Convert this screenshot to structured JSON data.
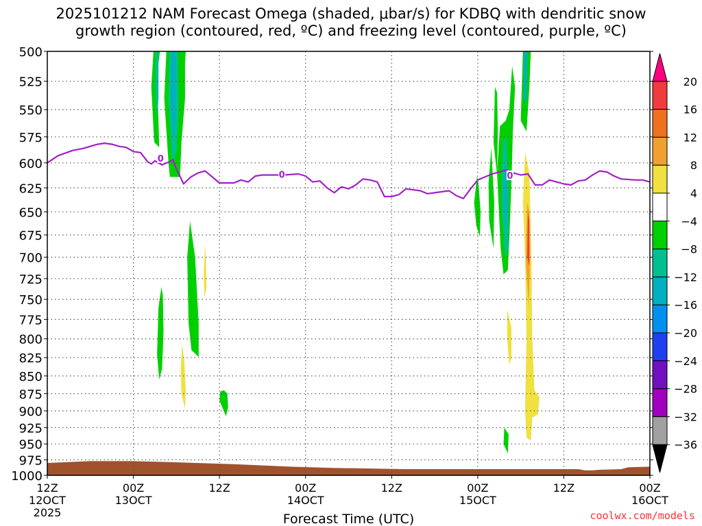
{
  "title_line_1": "2025101212 NAM Forecast Omega (shaded, μbar/s) for KDBQ with dendritic snow",
  "title_line_2": "growth region (contoured, red, ºC) and freezing level (contoured, purple, ºC)",
  "credit": "coolwx.com/models",
  "colors": {
    "freezing_level": "#a020c8",
    "terrain": "#a0522d",
    "grid": "#555555",
    "credit": "#ff3030"
  },
  "chart_data": {
    "type": "time-height cross section",
    "title": "2025101212 NAM Forecast Omega (shaded, μbar/s) for KDBQ with dendritic snow growth region (contoured, red, ºC) and freezing level (contoured, purple, ºC)",
    "xlabel": "Forecast Time (UTC)",
    "ylabel": "",
    "x_unit": "hours since 12Z 12OCT 2025",
    "xlim": [
      0,
      84
    ],
    "ylim": [
      1000,
      500
    ],
    "grid": true,
    "x_ticks": [
      {
        "hour": 0,
        "line1": "12Z",
        "line2": "12OCT",
        "line3": "2025"
      },
      {
        "hour": 12,
        "line1": "00Z",
        "line2": "13OCT",
        "line3": ""
      },
      {
        "hour": 24,
        "line1": "12Z",
        "line2": "",
        "line3": ""
      },
      {
        "hour": 36,
        "line1": "00Z",
        "line2": "14OCT",
        "line3": ""
      },
      {
        "hour": 48,
        "line1": "12Z",
        "line2": "",
        "line3": ""
      },
      {
        "hour": 60,
        "line1": "00Z",
        "line2": "15OCT",
        "line3": ""
      },
      {
        "hour": 72,
        "line1": "12Z",
        "line2": "",
        "line3": ""
      },
      {
        "hour": 84,
        "line1": "00Z",
        "line2": "16OCT",
        "line3": ""
      }
    ],
    "y_ticks": [
      500,
      525,
      550,
      575,
      600,
      625,
      650,
      675,
      700,
      725,
      750,
      775,
      800,
      825,
      850,
      875,
      900,
      925,
      950,
      975,
      1000
    ],
    "colorbar": {
      "labels": [
        "20",
        "16",
        "12",
        "8",
        "4",
        "−4",
        "−8",
        "−12",
        "−16",
        "−20",
        "−24",
        "−28",
        "−32",
        "−36"
      ],
      "colors": [
        "#ff0080",
        "#f03c3c",
        "#f07020",
        "#f0a030",
        "#f0e040",
        "#ffffff",
        "#00d000",
        "#00c090",
        "#00b0c0",
        "#0090f0",
        "#2040f0",
        "#7010c0",
        "#a000c0",
        "#a0a0a0",
        "#000000"
      ]
    },
    "freezing_level": {
      "contour_label": "0",
      "points": [
        [
          0,
          600
        ],
        [
          1.5,
          593
        ],
        [
          3.5,
          588
        ],
        [
          5,
          586
        ],
        [
          7,
          582
        ],
        [
          8,
          581
        ],
        [
          9,
          582
        ],
        [
          10,
          584
        ],
        [
          11,
          585
        ],
        [
          12,
          589
        ],
        [
          13,
          590
        ],
        [
          14,
          599
        ],
        [
          14.5,
          601
        ],
        [
          15,
          598
        ],
        [
          16,
          602
        ],
        [
          17,
          599
        ],
        [
          17.5,
          597
        ],
        [
          18,
          606
        ],
        [
          19,
          621
        ],
        [
          20,
          614
        ],
        [
          21,
          610
        ],
        [
          22,
          608
        ],
        [
          23,
          614
        ],
        [
          24,
          620
        ],
        [
          26,
          620
        ],
        [
          27,
          617
        ],
        [
          28,
          619
        ],
        [
          29,
          613
        ],
        [
          30,
          612
        ],
        [
          33,
          612
        ],
        [
          35,
          611
        ],
        [
          36,
          613
        ],
        [
          37,
          619
        ],
        [
          38,
          618
        ],
        [
          39,
          625
        ],
        [
          40,
          630
        ],
        [
          41,
          624
        ],
        [
          42,
          626
        ],
        [
          43,
          622
        ],
        [
          44,
          616
        ],
        [
          45,
          617
        ],
        [
          46,
          619
        ],
        [
          47,
          634
        ],
        [
          48,
          634
        ],
        [
          49,
          632
        ],
        [
          50,
          626
        ],
        [
          52,
          628
        ],
        [
          53,
          631
        ],
        [
          54,
          630
        ],
        [
          56,
          628
        ],
        [
          57,
          633
        ],
        [
          58,
          636
        ],
        [
          59,
          626
        ],
        [
          60,
          617
        ],
        [
          61,
          614
        ],
        [
          62,
          611
        ],
        [
          63,
          609
        ],
        [
          64,
          607
        ],
        [
          65,
          610
        ],
        [
          66,
          612
        ],
        [
          67,
          611
        ],
        [
          68,
          622
        ],
        [
          69,
          622
        ],
        [
          70,
          617
        ],
        [
          71,
          619
        ],
        [
          72,
          621
        ],
        [
          73,
          622
        ],
        [
          74,
          618
        ],
        [
          75,
          617
        ],
        [
          76,
          612
        ],
        [
          77,
          608
        ],
        [
          78,
          609
        ],
        [
          79,
          613
        ],
        [
          80,
          616
        ],
        [
          82,
          617
        ],
        [
          83,
          617
        ],
        [
          84,
          619
        ]
      ],
      "labels": [
        [
          15.8,
          596
        ],
        [
          32.7,
          612
        ],
        [
          64.5,
          613
        ]
      ]
    },
    "omega_shading": [
      {
        "level": "-4",
        "points": [
          [
            14.8,
            500
          ],
          [
            14.5,
            530
          ],
          [
            14.9,
            580
          ],
          [
            15.6,
            585
          ],
          [
            15.5,
            560
          ],
          [
            15.3,
            520
          ],
          [
            15.7,
            500
          ]
        ]
      },
      {
        "level": "-4",
        "points": [
          [
            16.6,
            500
          ],
          [
            16.3,
            540
          ],
          [
            16.9,
            600
          ],
          [
            17.1,
            614
          ],
          [
            18.5,
            614
          ],
          [
            18.7,
            580
          ],
          [
            19.2,
            540
          ],
          [
            19.2,
            510
          ],
          [
            19.3,
            500
          ]
        ]
      },
      {
        "level": "-8",
        "points": [
          [
            15.1,
            500
          ],
          [
            15.0,
            530
          ],
          [
            15.3,
            560
          ],
          [
            15.5,
            540
          ],
          [
            15.5,
            500
          ]
        ]
      },
      {
        "level": "-8",
        "points": [
          [
            17.0,
            500
          ],
          [
            16.9,
            540
          ],
          [
            17.4,
            600
          ],
          [
            18.0,
            590
          ],
          [
            18.3,
            550
          ],
          [
            18.2,
            500
          ]
        ]
      },
      {
        "level": "-12",
        "points": [
          [
            17.3,
            500
          ],
          [
            17.2,
            540
          ],
          [
            17.6,
            580
          ],
          [
            17.9,
            560
          ],
          [
            17.9,
            500
          ]
        ]
      },
      {
        "level": "-4",
        "points": [
          [
            15.9,
            735
          ],
          [
            15.5,
            760
          ],
          [
            15.3,
            820
          ],
          [
            15.6,
            855
          ],
          [
            16.0,
            840
          ],
          [
            16.2,
            790
          ],
          [
            16.1,
            745
          ]
        ]
      },
      {
        "level": "-4",
        "points": [
          [
            19.9,
            660
          ],
          [
            19.5,
            700
          ],
          [
            19.7,
            780
          ],
          [
            20.1,
            815
          ],
          [
            21.1,
            824
          ],
          [
            21.1,
            780
          ],
          [
            20.6,
            700
          ]
        ]
      },
      {
        "level": "-4",
        "points": [
          [
            24.1,
            872
          ],
          [
            24.0,
            885
          ],
          [
            24.6,
            900
          ],
          [
            24.9,
            908
          ],
          [
            25.2,
            895
          ],
          [
            25.1,
            875
          ],
          [
            24.6,
            870
          ]
        ]
      },
      {
        "level": "4",
        "points": [
          [
            18.8,
            807
          ],
          [
            18.6,
            840
          ],
          [
            18.7,
            875
          ],
          [
            19.2,
            897
          ],
          [
            19.3,
            870
          ],
          [
            19.1,
            830
          ]
        ]
      },
      {
        "level": "4",
        "points": [
          [
            22.0,
            685
          ],
          [
            21.8,
            720
          ],
          [
            21.9,
            748
          ],
          [
            22.2,
            735
          ],
          [
            22.1,
            700
          ]
        ]
      },
      {
        "level": "-4",
        "points": [
          [
            59.9,
            613
          ],
          [
            59.5,
            640
          ],
          [
            59.8,
            665
          ],
          [
            60.3,
            677
          ],
          [
            60.4,
            650
          ],
          [
            60.1,
            620
          ]
        ]
      },
      {
        "level": "-4",
        "points": [
          [
            61.9,
            585
          ],
          [
            61.5,
            620
          ],
          [
            61.6,
            660
          ],
          [
            62.2,
            690
          ],
          [
            62.3,
            640
          ],
          [
            62.0,
            600
          ]
        ]
      },
      {
        "level": "-4",
        "points": [
          [
            63.1,
            565
          ],
          [
            62.7,
            610
          ],
          [
            63.2,
            690
          ],
          [
            63.6,
            720
          ],
          [
            64.2,
            715
          ],
          [
            64.4,
            680
          ],
          [
            64.7,
            620
          ],
          [
            64.9,
            570
          ],
          [
            65.2,
            530
          ],
          [
            64.8,
            512
          ],
          [
            64.4,
            550
          ],
          [
            63.9,
            560
          ]
        ]
      },
      {
        "level": "-4",
        "points": [
          [
            62.4,
            530
          ],
          [
            62.2,
            580
          ],
          [
            62.7,
            612
          ],
          [
            62.8,
            570
          ],
          [
            62.7,
            535
          ]
        ]
      },
      {
        "level": "-4",
        "points": [
          [
            66.3,
            500
          ],
          [
            66.0,
            560
          ],
          [
            66.8,
            570
          ],
          [
            67.2,
            530
          ],
          [
            67.4,
            500
          ]
        ]
      },
      {
        "level": "-8",
        "points": [
          [
            63.5,
            580
          ],
          [
            63.3,
            640
          ],
          [
            63.8,
            700
          ],
          [
            64.3,
            690
          ],
          [
            64.3,
            620
          ],
          [
            64.0,
            575
          ]
        ]
      },
      {
        "level": "-12",
        "points": [
          [
            63.7,
            600
          ],
          [
            63.7,
            660
          ],
          [
            64.0,
            670
          ],
          [
            64.1,
            620
          ]
        ]
      },
      {
        "level": "-12",
        "points": [
          [
            66.4,
            500
          ],
          [
            66.4,
            540
          ],
          [
            66.8,
            545
          ],
          [
            66.9,
            500
          ]
        ]
      },
      {
        "level": "-4",
        "points": [
          [
            63.7,
            925
          ],
          [
            63.6,
            950
          ],
          [
            64.2,
            965
          ],
          [
            64.3,
            935
          ]
        ]
      },
      {
        "level": "4",
        "points": [
          [
            66.6,
            590
          ],
          [
            66.3,
            640
          ],
          [
            66.6,
            700
          ],
          [
            66.8,
            800
          ],
          [
            66.6,
            900
          ],
          [
            66.8,
            940
          ],
          [
            67.4,
            945
          ],
          [
            67.6,
            910
          ],
          [
            68.4,
            905
          ],
          [
            68.6,
            880
          ],
          [
            67.9,
            870
          ],
          [
            67.6,
            800
          ],
          [
            67.5,
            700
          ],
          [
            67.2,
            610
          ]
        ]
      },
      {
        "level": "4",
        "points": [
          [
            64.1,
            763
          ],
          [
            64.1,
            800
          ],
          [
            64.4,
            835
          ],
          [
            64.7,
            825
          ],
          [
            64.7,
            785
          ]
        ]
      },
      {
        "level": "8",
        "points": [
          [
            66.9,
            640
          ],
          [
            66.7,
            700
          ],
          [
            67.1,
            760
          ],
          [
            67.3,
            700
          ],
          [
            67.2,
            650
          ]
        ]
      },
      {
        "level": "16",
        "points": [
          [
            67.0,
            650
          ],
          [
            66.9,
            700
          ],
          [
            67.2,
            710
          ],
          [
            67.2,
            660
          ]
        ]
      }
    ],
    "terrain_top": [
      [
        0,
        980
      ],
      [
        6,
        977
      ],
      [
        12,
        977
      ],
      [
        18,
        979
      ],
      [
        26,
        982
      ],
      [
        34,
        986
      ],
      [
        40,
        988
      ],
      [
        50,
        990
      ],
      [
        60,
        990
      ],
      [
        70,
        990
      ],
      [
        74,
        990
      ],
      [
        75,
        992
      ],
      [
        76,
        992
      ],
      [
        77,
        991
      ],
      [
        80,
        990
      ],
      [
        81,
        987
      ],
      [
        84,
        986
      ]
    ]
  }
}
